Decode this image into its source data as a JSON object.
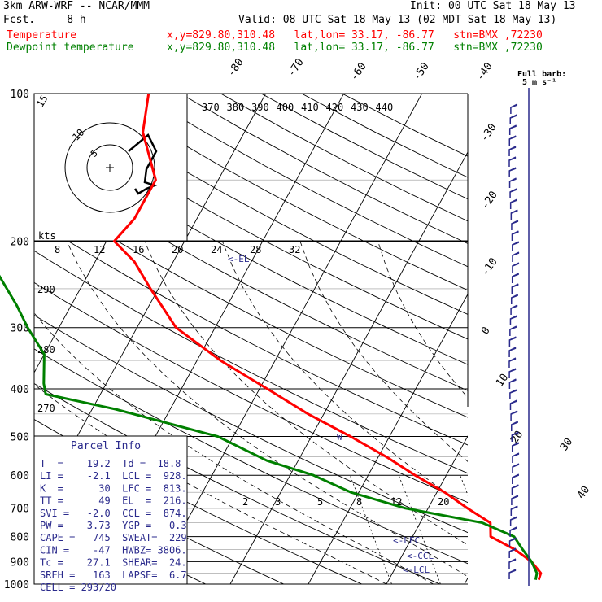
{
  "header": {
    "model": "3km ARW-WRF -- NCAR/MMM",
    "init": "Init: 00 UTC Sat 18 May 13",
    "fcst": "Fcst.     8 h",
    "valid": "Valid: 08 UTC Sat 18 May 13 (02 MDT Sat 18 May 13)",
    "temp_label": "Temperature",
    "dew_label": "Dewpoint temperature",
    "temp_loc": "x,y=829.80,310.48   lat,lon= 33.17, -86.77   stn=BMX ,72230",
    "dew_loc": "x,y=829.80,310.48   lat,lon= 33.17, -86.77   stn=BMX ,72230"
  },
  "colors": {
    "temperature": "#ff0000",
    "dewpoint": "#008000",
    "winds": "#2a2a8c",
    "parcel_text": "#2a2a8c",
    "grid": "#000000"
  },
  "chart_data": {
    "type": "line",
    "subtype": "skew-T log-P sounding",
    "pressure_levels": [
      100,
      200,
      300,
      400,
      500,
      600,
      700,
      800,
      900,
      1000
    ],
    "isotherm_labels": [
      "-80",
      "-70",
      "-60",
      "-50",
      "-40",
      "-30",
      "-20",
      "-10",
      "0",
      "10",
      "20",
      "30",
      "40"
    ],
    "theta_labels": [
      "370",
      "380",
      "390",
      "400",
      "410",
      "420",
      "430",
      "440"
    ],
    "theta_side_labels": [
      "290",
      "280",
      "270"
    ],
    "mixing_ratio_labels": [
      "2",
      "3",
      "5",
      "8",
      "12",
      "20"
    ],
    "hodograph": {
      "units_label": "kts",
      "speed_labels": [
        "8",
        "12",
        "16",
        "20",
        "24",
        "28",
        "32"
      ],
      "ring_labels": [
        "5",
        "10",
        "15"
      ]
    },
    "series": [
      {
        "name": "Temperature",
        "points": [
          [
            100,
            -65
          ],
          [
            120,
            -63
          ],
          [
            150,
            -58
          ],
          [
            180,
            -58
          ],
          [
            200,
            -59
          ],
          [
            220,
            -55
          ],
          [
            250,
            -51
          ],
          [
            300,
            -45
          ],
          [
            350,
            -37
          ],
          [
            400,
            -29
          ],
          [
            450,
            -22
          ],
          [
            500,
            -15
          ],
          [
            550,
            -9
          ],
          [
            600,
            -4
          ],
          [
            650,
            1
          ],
          [
            700,
            5
          ],
          [
            750,
            9
          ],
          [
            800,
            10
          ],
          [
            850,
            14
          ],
          [
            900,
            17
          ],
          [
            950,
            19
          ],
          [
            980,
            19.2
          ]
        ]
      },
      {
        "name": "Dewpoint temperature",
        "points": [
          [
            100,
            -87
          ],
          [
            120,
            -86
          ],
          [
            150,
            -87
          ],
          [
            180,
            -83
          ],
          [
            200,
            -78
          ],
          [
            230,
            -72
          ],
          [
            270,
            -67
          ],
          [
            300,
            -64
          ],
          [
            340,
            -60
          ],
          [
            390,
            -58
          ],
          [
            410,
            -57
          ],
          [
            440,
            -47
          ],
          [
            500,
            -32
          ],
          [
            560,
            -24
          ],
          [
            600,
            -17
          ],
          [
            650,
            -11
          ],
          [
            700,
            -3
          ],
          [
            750,
            8
          ],
          [
            800,
            13
          ],
          [
            850,
            15
          ],
          [
            900,
            17
          ],
          [
            950,
            18.5
          ],
          [
            980,
            18.8
          ]
        ]
      }
    ],
    "annotations": [
      "<-EL",
      "<-LFC",
      "<-CCL",
      "<-LCL",
      "W"
    ],
    "wind_barbs": {
      "title": "Full barb:",
      "units": "5 m s⁻¹"
    }
  },
  "parcel_info": {
    "title": "Parcel Info",
    "rows": [
      "T  =    19.2  Td =  18.8",
      "LI =    -2.1  LCL =  928.",
      "K  =      30  LFC =  813.",
      "TT =      49  EL  =  216.",
      "SVI =   -2.0  CCL =  874.",
      "PW =    3.73  YGP =   0.3",
      "CAPE =   745  SWEAT=  229",
      "CIN =    -47  HWBZ= 3806.",
      "Tc =    27.1  SHEAR=  24.",
      "SREH =   163  LAPSE=  6.7",
      "CELL = 293/20"
    ]
  }
}
